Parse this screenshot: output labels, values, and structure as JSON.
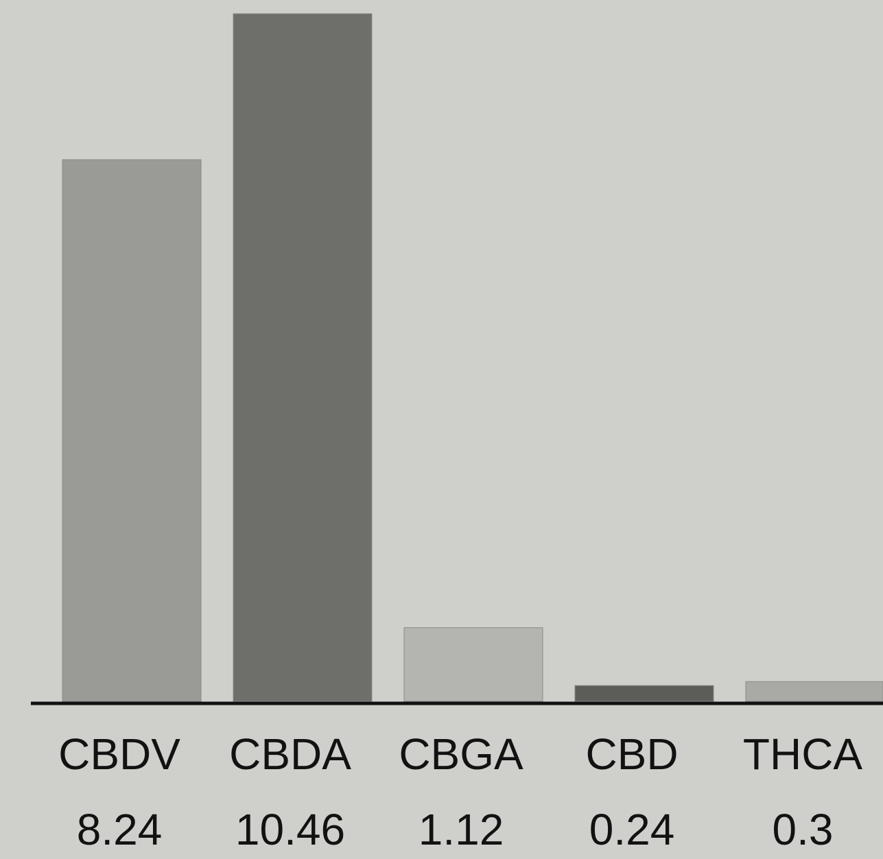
{
  "chart_data": {
    "type": "bar",
    "title": "",
    "xlabel": "",
    "ylabel": "",
    "categories": [
      "CBDV",
      "CBDA",
      "CBGA",
      "CBD",
      "THCA"
    ],
    "values": [
      8.24,
      10.46,
      1.12,
      0.24,
      0.3
    ],
    "value_labels": [
      "8.24",
      "10.46",
      "1.12",
      "0.24",
      "0.3"
    ],
    "bar_colors": [
      "#9a9a96",
      "#6e6e6b",
      "#b4b5b1",
      "#5c5c59",
      "#a9aaa6"
    ],
    "ylim": [
      0,
      10.46
    ],
    "grid": false,
    "legend": "none"
  }
}
